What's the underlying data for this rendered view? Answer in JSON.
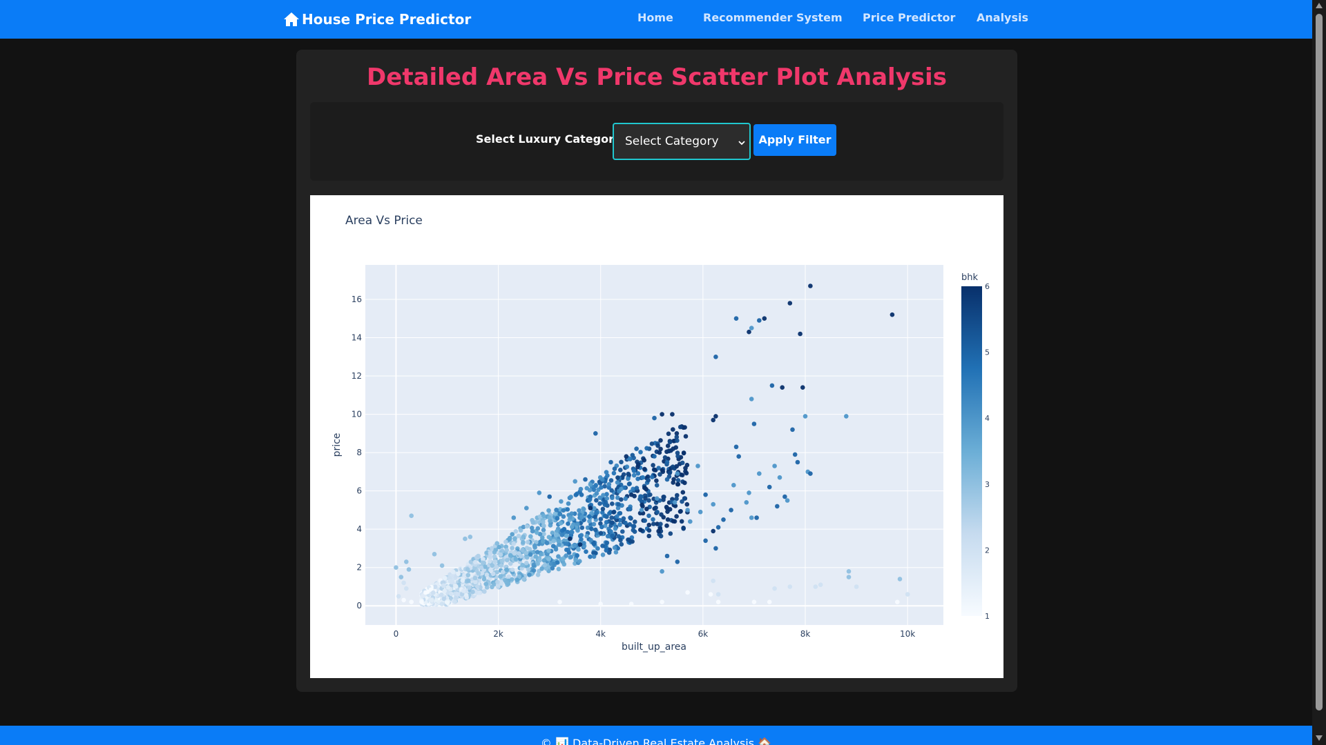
{
  "nav": {
    "brand": "House Price Predictor",
    "links": [
      "Home",
      "Recommender System",
      "Price Predictor",
      "Analysis"
    ],
    "bg_color": "#0a7cf7"
  },
  "main": {
    "title": "Detailed Area Vs Price Scatter Plot Analysis",
    "filter_label": "Select Luxury Category:",
    "select_value": "Select Category",
    "apply_button": "Apply Filter"
  },
  "footer": {
    "text": "© 📊 Data-Driven Real Estate Analysis 🏠"
  },
  "chart_data": {
    "type": "scatter",
    "title": "Area Vs Price",
    "xlabel": "built_up_area",
    "ylabel": "price",
    "colorbar_title": "bhk",
    "xlim": [
      -600,
      10700
    ],
    "ylim": [
      -1,
      17.8
    ],
    "x_ticks": [
      0,
      2000,
      4000,
      6000,
      8000,
      10000
    ],
    "x_tick_labels": [
      "0",
      "2k",
      "4k",
      "6k",
      "8k",
      "10k"
    ],
    "y_ticks": [
      0,
      2,
      4,
      6,
      8,
      10,
      12,
      14,
      16
    ],
    "y_tick_labels": [
      "0",
      "2",
      "4",
      "6",
      "8",
      "10",
      "12",
      "14",
      "16"
    ],
    "colorbar_ticks": [
      "1",
      "2",
      "3",
      "4",
      "5",
      "6"
    ],
    "color_scale": [
      "#f7fbff",
      "#c6dbef",
      "#6baed6",
      "#2171b5",
      "#08306b"
    ],
    "grid": true,
    "points": [
      {
        "x": 8100,
        "y": 16.7,
        "bhk": 6
      },
      {
        "x": 7700,
        "y": 15.8,
        "bhk": 6
      },
      {
        "x": 9700,
        "y": 15.2,
        "bhk": 6
      },
      {
        "x": 6650,
        "y": 15.0,
        "bhk": 5
      },
      {
        "x": 7200,
        "y": 15.0,
        "bhk": 6
      },
      {
        "x": 7100,
        "y": 14.9,
        "bhk": 5
      },
      {
        "x": 6950,
        "y": 14.5,
        "bhk": 4
      },
      {
        "x": 6900,
        "y": 14.3,
        "bhk": 6
      },
      {
        "x": 7900,
        "y": 14.2,
        "bhk": 6
      },
      {
        "x": 6250,
        "y": 13.0,
        "bhk": 5
      },
      {
        "x": 7350,
        "y": 11.5,
        "bhk": 5
      },
      {
        "x": 7550,
        "y": 11.4,
        "bhk": 6
      },
      {
        "x": 7950,
        "y": 11.4,
        "bhk": 6
      },
      {
        "x": 6950,
        "y": 10.8,
        "bhk": 4
      },
      {
        "x": 8800,
        "y": 9.9,
        "bhk": 4
      },
      {
        "x": 8000,
        "y": 9.9,
        "bhk": 4
      },
      {
        "x": 6250,
        "y": 9.9,
        "bhk": 6
      },
      {
        "x": 7000,
        "y": 9.5,
        "bhk": 5
      },
      {
        "x": 5200,
        "y": 10.0,
        "bhk": 6
      },
      {
        "x": 5400,
        "y": 10.0,
        "bhk": 6
      },
      {
        "x": 5050,
        "y": 9.8,
        "bhk": 5
      },
      {
        "x": 3900,
        "y": 9.0,
        "bhk": 5
      },
      {
        "x": 7750,
        "y": 9.2,
        "bhk": 5
      },
      {
        "x": 6200,
        "y": 9.7,
        "bhk": 6
      },
      {
        "x": 6650,
        "y": 8.3,
        "bhk": 5
      },
      {
        "x": 6700,
        "y": 7.8,
        "bhk": 5
      },
      {
        "x": 7400,
        "y": 7.3,
        "bhk": 4
      },
      {
        "x": 8050,
        "y": 7.0,
        "bhk": 4
      },
      {
        "x": 8100,
        "y": 6.9,
        "bhk": 5
      },
      {
        "x": 7100,
        "y": 6.9,
        "bhk": 4
      },
      {
        "x": 7850,
        "y": 7.5,
        "bhk": 5
      },
      {
        "x": 7800,
        "y": 7.9,
        "bhk": 5
      },
      {
        "x": 7500,
        "y": 6.7,
        "bhk": 4
      },
      {
        "x": 7300,
        "y": 6.2,
        "bhk": 5
      },
      {
        "x": 6900,
        "y": 5.9,
        "bhk": 4
      },
      {
        "x": 7600,
        "y": 5.7,
        "bhk": 5
      },
      {
        "x": 7650,
        "y": 5.5,
        "bhk": 4
      },
      {
        "x": 7450,
        "y": 5.2,
        "bhk": 5
      },
      {
        "x": 6950,
        "y": 4.6,
        "bhk": 4
      },
      {
        "x": 7050,
        "y": 4.6,
        "bhk": 5
      },
      {
        "x": 300,
        "y": 4.7,
        "bhk": 3
      },
      {
        "x": 8850,
        "y": 1.8,
        "bhk": 3
      },
      {
        "x": 8850,
        "y": 1.5,
        "bhk": 3
      },
      {
        "x": 9850,
        "y": 1.4,
        "bhk": 3
      },
      {
        "x": 9000,
        "y": 1.0,
        "bhk": 2
      },
      {
        "x": 8300,
        "y": 1.1,
        "bhk": 2
      },
      {
        "x": 8200,
        "y": 1.0,
        "bhk": 2
      },
      {
        "x": 7700,
        "y": 1.0,
        "bhk": 2
      },
      {
        "x": 7400,
        "y": 0.9,
        "bhk": 2
      },
      {
        "x": 10000,
        "y": 0.6,
        "bhk": 2
      },
      {
        "x": 9800,
        "y": 0.2,
        "bhk": 1
      },
      {
        "x": 6200,
        "y": 1.3,
        "bhk": 2
      },
      {
        "x": 6300,
        "y": 0.6,
        "bhk": 2
      },
      {
        "x": 6150,
        "y": 0.6,
        "bhk": 1
      },
      {
        "x": 5700,
        "y": 0.7,
        "bhk": 1
      },
      {
        "x": 5200,
        "y": 0.2,
        "bhk": 1
      },
      {
        "x": 4600,
        "y": 0.1,
        "bhk": 1
      },
      {
        "x": 4000,
        "y": 0.1,
        "bhk": 1
      },
      {
        "x": 3200,
        "y": 0.2,
        "bhk": 1
      },
      {
        "x": 7000,
        "y": 0.2,
        "bhk": 1
      },
      {
        "x": 7300,
        "y": 0.2,
        "bhk": 1
      },
      {
        "x": 6300,
        "y": 0.2,
        "bhk": 1
      },
      {
        "x": 0,
        "y": 2.0,
        "bhk": 3
      },
      {
        "x": 200,
        "y": 2.3,
        "bhk": 3
      },
      {
        "x": 250,
        "y": 1.9,
        "bhk": 3
      },
      {
        "x": 100,
        "y": 1.5,
        "bhk": 3
      },
      {
        "x": 150,
        "y": 1.2,
        "bhk": 2
      },
      {
        "x": 200,
        "y": 0.9,
        "bhk": 2
      },
      {
        "x": 50,
        "y": 0.5,
        "bhk": 2
      },
      {
        "x": 150,
        "y": 0.3,
        "bhk": 1
      },
      {
        "x": 300,
        "y": 0.2,
        "bhk": 1
      },
      {
        "x": 500,
        "y": 0.2,
        "bhk": 1
      },
      {
        "x": 750,
        "y": 2.7,
        "bhk": 3
      },
      {
        "x": 900,
        "y": 2.1,
        "bhk": 3
      },
      {
        "x": 1350,
        "y": 3.5,
        "bhk": 3
      },
      {
        "x": 1450,
        "y": 3.6,
        "bhk": 3
      },
      {
        "x": 2300,
        "y": 4.6,
        "bhk": 4
      },
      {
        "x": 2550,
        "y": 5.1,
        "bhk": 4
      },
      {
        "x": 2800,
        "y": 5.9,
        "bhk": 4
      },
      {
        "x": 3000,
        "y": 5.7,
        "bhk": 5
      },
      {
        "x": 3500,
        "y": 6.5,
        "bhk": 4
      },
      {
        "x": 3700,
        "y": 6.6,
        "bhk": 5
      },
      {
        "x": 4200,
        "y": 7.5,
        "bhk": 5
      },
      {
        "x": 4500,
        "y": 7.8,
        "bhk": 6
      },
      {
        "x": 4700,
        "y": 8.2,
        "bhk": 5
      },
      {
        "x": 4850,
        "y": 7.6,
        "bhk": 6
      },
      {
        "x": 5150,
        "y": 8.0,
        "bhk": 6
      },
      {
        "x": 5300,
        "y": 7.5,
        "bhk": 5
      },
      {
        "x": 5500,
        "y": 6.9,
        "bhk": 4
      },
      {
        "x": 5300,
        "y": 6.6,
        "bhk": 5
      },
      {
        "x": 4400,
        "y": 6.1,
        "bhk": 4
      },
      {
        "x": 4600,
        "y": 5.8,
        "bhk": 6
      },
      {
        "x": 4100,
        "y": 5.4,
        "bhk": 5
      },
      {
        "x": 3800,
        "y": 5.1,
        "bhk": 6
      },
      {
        "x": 4800,
        "y": 5.0,
        "bhk": 4
      },
      {
        "x": 5100,
        "y": 5.6,
        "bhk": 4
      },
      {
        "x": 3400,
        "y": 3.5,
        "bhk": 6
      },
      {
        "x": 3600,
        "y": 3.2,
        "bhk": 6
      },
      {
        "x": 4300,
        "y": 2.8,
        "bhk": 4
      },
      {
        "x": 5300,
        "y": 2.6,
        "bhk": 5
      },
      {
        "x": 5500,
        "y": 2.3,
        "bhk": 5
      },
      {
        "x": 5200,
        "y": 1.8,
        "bhk": 4
      },
      {
        "x": 6050,
        "y": 5.8,
        "bhk": 5
      },
      {
        "x": 6200,
        "y": 5.3,
        "bhk": 4
      },
      {
        "x": 5950,
        "y": 4.9,
        "bhk": 4
      },
      {
        "x": 6400,
        "y": 4.5,
        "bhk": 5
      },
      {
        "x": 6300,
        "y": 4.1,
        "bhk": 5
      },
      {
        "x": 6200,
        "y": 3.9,
        "bhk": 6
      },
      {
        "x": 6050,
        "y": 3.4,
        "bhk": 5
      },
      {
        "x": 6250,
        "y": 3.0,
        "bhk": 5
      },
      {
        "x": 5750,
        "y": 4.4,
        "bhk": 4
      },
      {
        "x": 6600,
        "y": 6.3,
        "bhk": 4
      },
      {
        "x": 6850,
        "y": 5.4,
        "bhk": 4
      },
      {
        "x": 6550,
        "y": 5.0,
        "bhk": 5
      },
      {
        "x": 5900,
        "y": 7.3,
        "bhk": 4
      },
      {
        "x": 5450,
        "y": 5.4,
        "bhk": 4
      },
      {
        "x": 5700,
        "y": 5.0,
        "bhk": 4
      }
    ]
  }
}
